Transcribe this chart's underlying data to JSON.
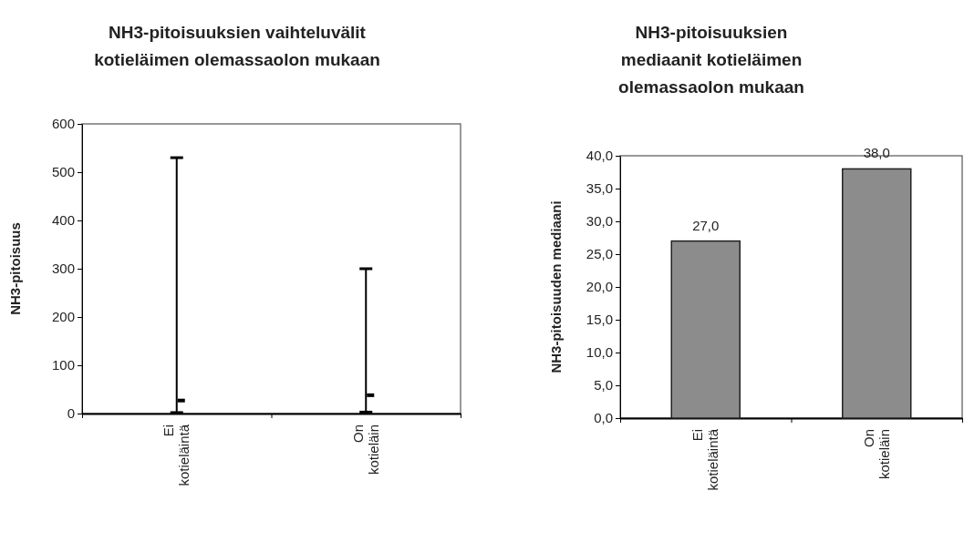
{
  "chart_data": [
    {
      "type": "bar",
      "title": "NH3-pitoisuuksien vaihteluvälit kotieläimen olemassaolon mukaan",
      "ylabel": "NH3-pitoisuus",
      "categories": [
        "Ei kotieläintä",
        "On kotieläin"
      ],
      "series": [
        {
          "type": "bar",
          "color": "#000000",
          "base": [
            2,
            3
          ],
          "values": [
            528,
            297
          ]
        },
        {
          "type": "scatter",
          "color": "#000000",
          "values": [
            27,
            38
          ]
        }
      ],
      "marker": "square",
      "ylim": [
        0,
        600
      ],
      "yticks": [
        0,
        100,
        200,
        300,
        400,
        500,
        600
      ],
      "grid": false
    },
    {
      "type": "bar",
      "title": "NH3-pitoisuuksien mediaanit kotieläimen olemassaolon mukaan",
      "ylabel": "NH3-pitoisuuden mediaani",
      "categories": [
        "Ei kotieläintä",
        "On kotieläin"
      ],
      "values": [
        27,
        38
      ],
      "color": "#8c8c8c",
      "value_labels": [
        "27,0",
        "38,0"
      ],
      "ylim": [
        0,
        40
      ],
      "yticks": [
        {
          "value": 0,
          "label": "0,0"
        },
        {
          "value": 5,
          "label": "5,0"
        },
        {
          "value": 10,
          "label": "10,0"
        },
        {
          "value": 15,
          "label": "15,0"
        },
        {
          "value": 20,
          "label": "20,0"
        },
        {
          "value": 25,
          "label": "25,0"
        },
        {
          "value": 30,
          "label": "30,0"
        },
        {
          "value": 35,
          "label": "35,0"
        },
        {
          "value": 40,
          "label": "40,0"
        }
      ],
      "grid": false
    }
  ]
}
